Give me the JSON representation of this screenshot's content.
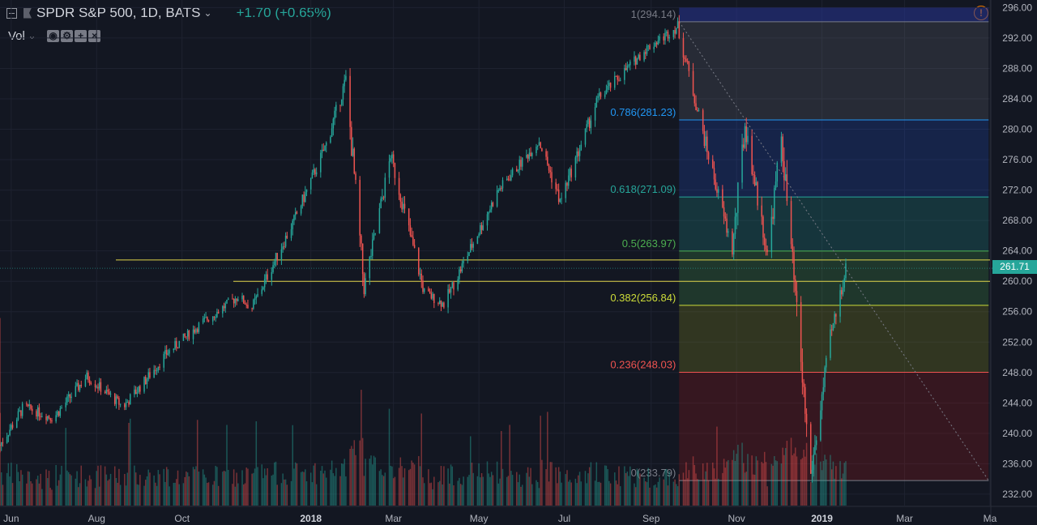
{
  "header": {
    "symbol": "SPDR S&P 500, 1D, BATS",
    "change": "+1.70 (+0.65%)",
    "indicator": "Vol",
    "alert_icon": "alert-icon"
  },
  "colors": {
    "background": "#131722",
    "up": "#26a69a",
    "down": "#ef5350",
    "axis_text": "#b2b5be",
    "grid": "#1e2230",
    "hline": "#e0d44a"
  },
  "chart_data": {
    "type": "candlestick",
    "title": "SPDR S&P 500, 1D, BATS",
    "last_price": "261.71",
    "ylim": [
      230.5,
      297
    ],
    "y_ticks": [
      "296.00",
      "292.00",
      "288.00",
      "284.00",
      "280.00",
      "276.00",
      "272.00",
      "268.00",
      "264.00",
      "260.00",
      "256.00",
      "252.00",
      "248.00",
      "244.00",
      "240.00",
      "236.00",
      "232.00"
    ],
    "x_ticks": [
      "Jun",
      "Aug",
      "Oct",
      "2018",
      "Mar",
      "May",
      "Jul",
      "Sep",
      "Nov",
      "2019",
      "Mar",
      "Ma"
    ],
    "x_range": [
      "2017-05-24",
      "2019-05-01"
    ],
    "price_path": [
      [
        "2017-05-24",
        238.5
      ],
      [
        "2017-06-10",
        243.5
      ],
      [
        "2017-07-01",
        242.0
      ],
      [
        "2017-07-25",
        247.5
      ],
      [
        "2017-08-20",
        243.5
      ],
      [
        "2017-09-05",
        247.0
      ],
      [
        "2017-09-20",
        250.5
      ],
      [
        "2017-10-15",
        254.5
      ],
      [
        "2017-11-10",
        258.0
      ],
      [
        "2017-11-20",
        256.5
      ],
      [
        "2017-12-20",
        268.0
      ],
      [
        "2018-01-12",
        278.0
      ],
      [
        "2018-01-26",
        286.5
      ],
      [
        "2018-02-08",
        259.0
      ],
      [
        "2018-02-27",
        276.5
      ],
      [
        "2018-03-23",
        258.5
      ],
      [
        "2018-04-06",
        257.0
      ],
      [
        "2018-05-15",
        272.0
      ],
      [
        "2018-06-13",
        278.5
      ],
      [
        "2018-06-28",
        270.5
      ],
      [
        "2018-07-25",
        284.0
      ],
      [
        "2018-08-28",
        290.5
      ],
      [
        "2018-09-20",
        293.5
      ],
      [
        "2018-10-10",
        278.0
      ],
      [
        "2018-10-29",
        264.0
      ],
      [
        "2018-11-07",
        280.5
      ],
      [
        "2018-11-23",
        263.5
      ],
      [
        "2018-12-03",
        279.0
      ],
      [
        "2018-12-24",
        234.5
      ],
      [
        "2019-01-07",
        252.5
      ],
      [
        "2019-01-18",
        261.7
      ]
    ],
    "horizontal_lines": [
      262.8,
      260.0
    ],
    "fibonacci": {
      "start": "2018-09-21",
      "end": "2019-04-30",
      "levels": [
        {
          "label": "1(294.14)",
          "value": 294.14,
          "color": "#787b86",
          "fill": "rgba(120,123,134,0.20)"
        },
        {
          "label": "0.786(281.23)",
          "value": 281.23,
          "color": "#2196f3",
          "fill": "rgba(41,98,255,0.18)"
        },
        {
          "label": "0.618(271.09)",
          "value": 271.09,
          "color": "#26a69a",
          "fill": "rgba(38,166,154,0.22)"
        },
        {
          "label": "0.5(263.97)",
          "value": 263.97,
          "color": "#4caf50",
          "fill": "rgba(76,175,80,0.22)"
        },
        {
          "label": "0.382(256.84)",
          "value": 256.84,
          "color": "#cddc39",
          "fill": "rgba(139,149,30,0.25)"
        },
        {
          "label": "0.236(248.03)",
          "value": 248.03,
          "color": "#ef5350",
          "fill": "rgba(183,28,28,0.22)"
        },
        {
          "label": "0(233.79)",
          "value": 233.79,
          "color": "#787b86",
          "fill": null
        }
      ],
      "top_band_fill": "rgba(40,53,147,0.55)",
      "top_band_max": 296.0
    }
  }
}
